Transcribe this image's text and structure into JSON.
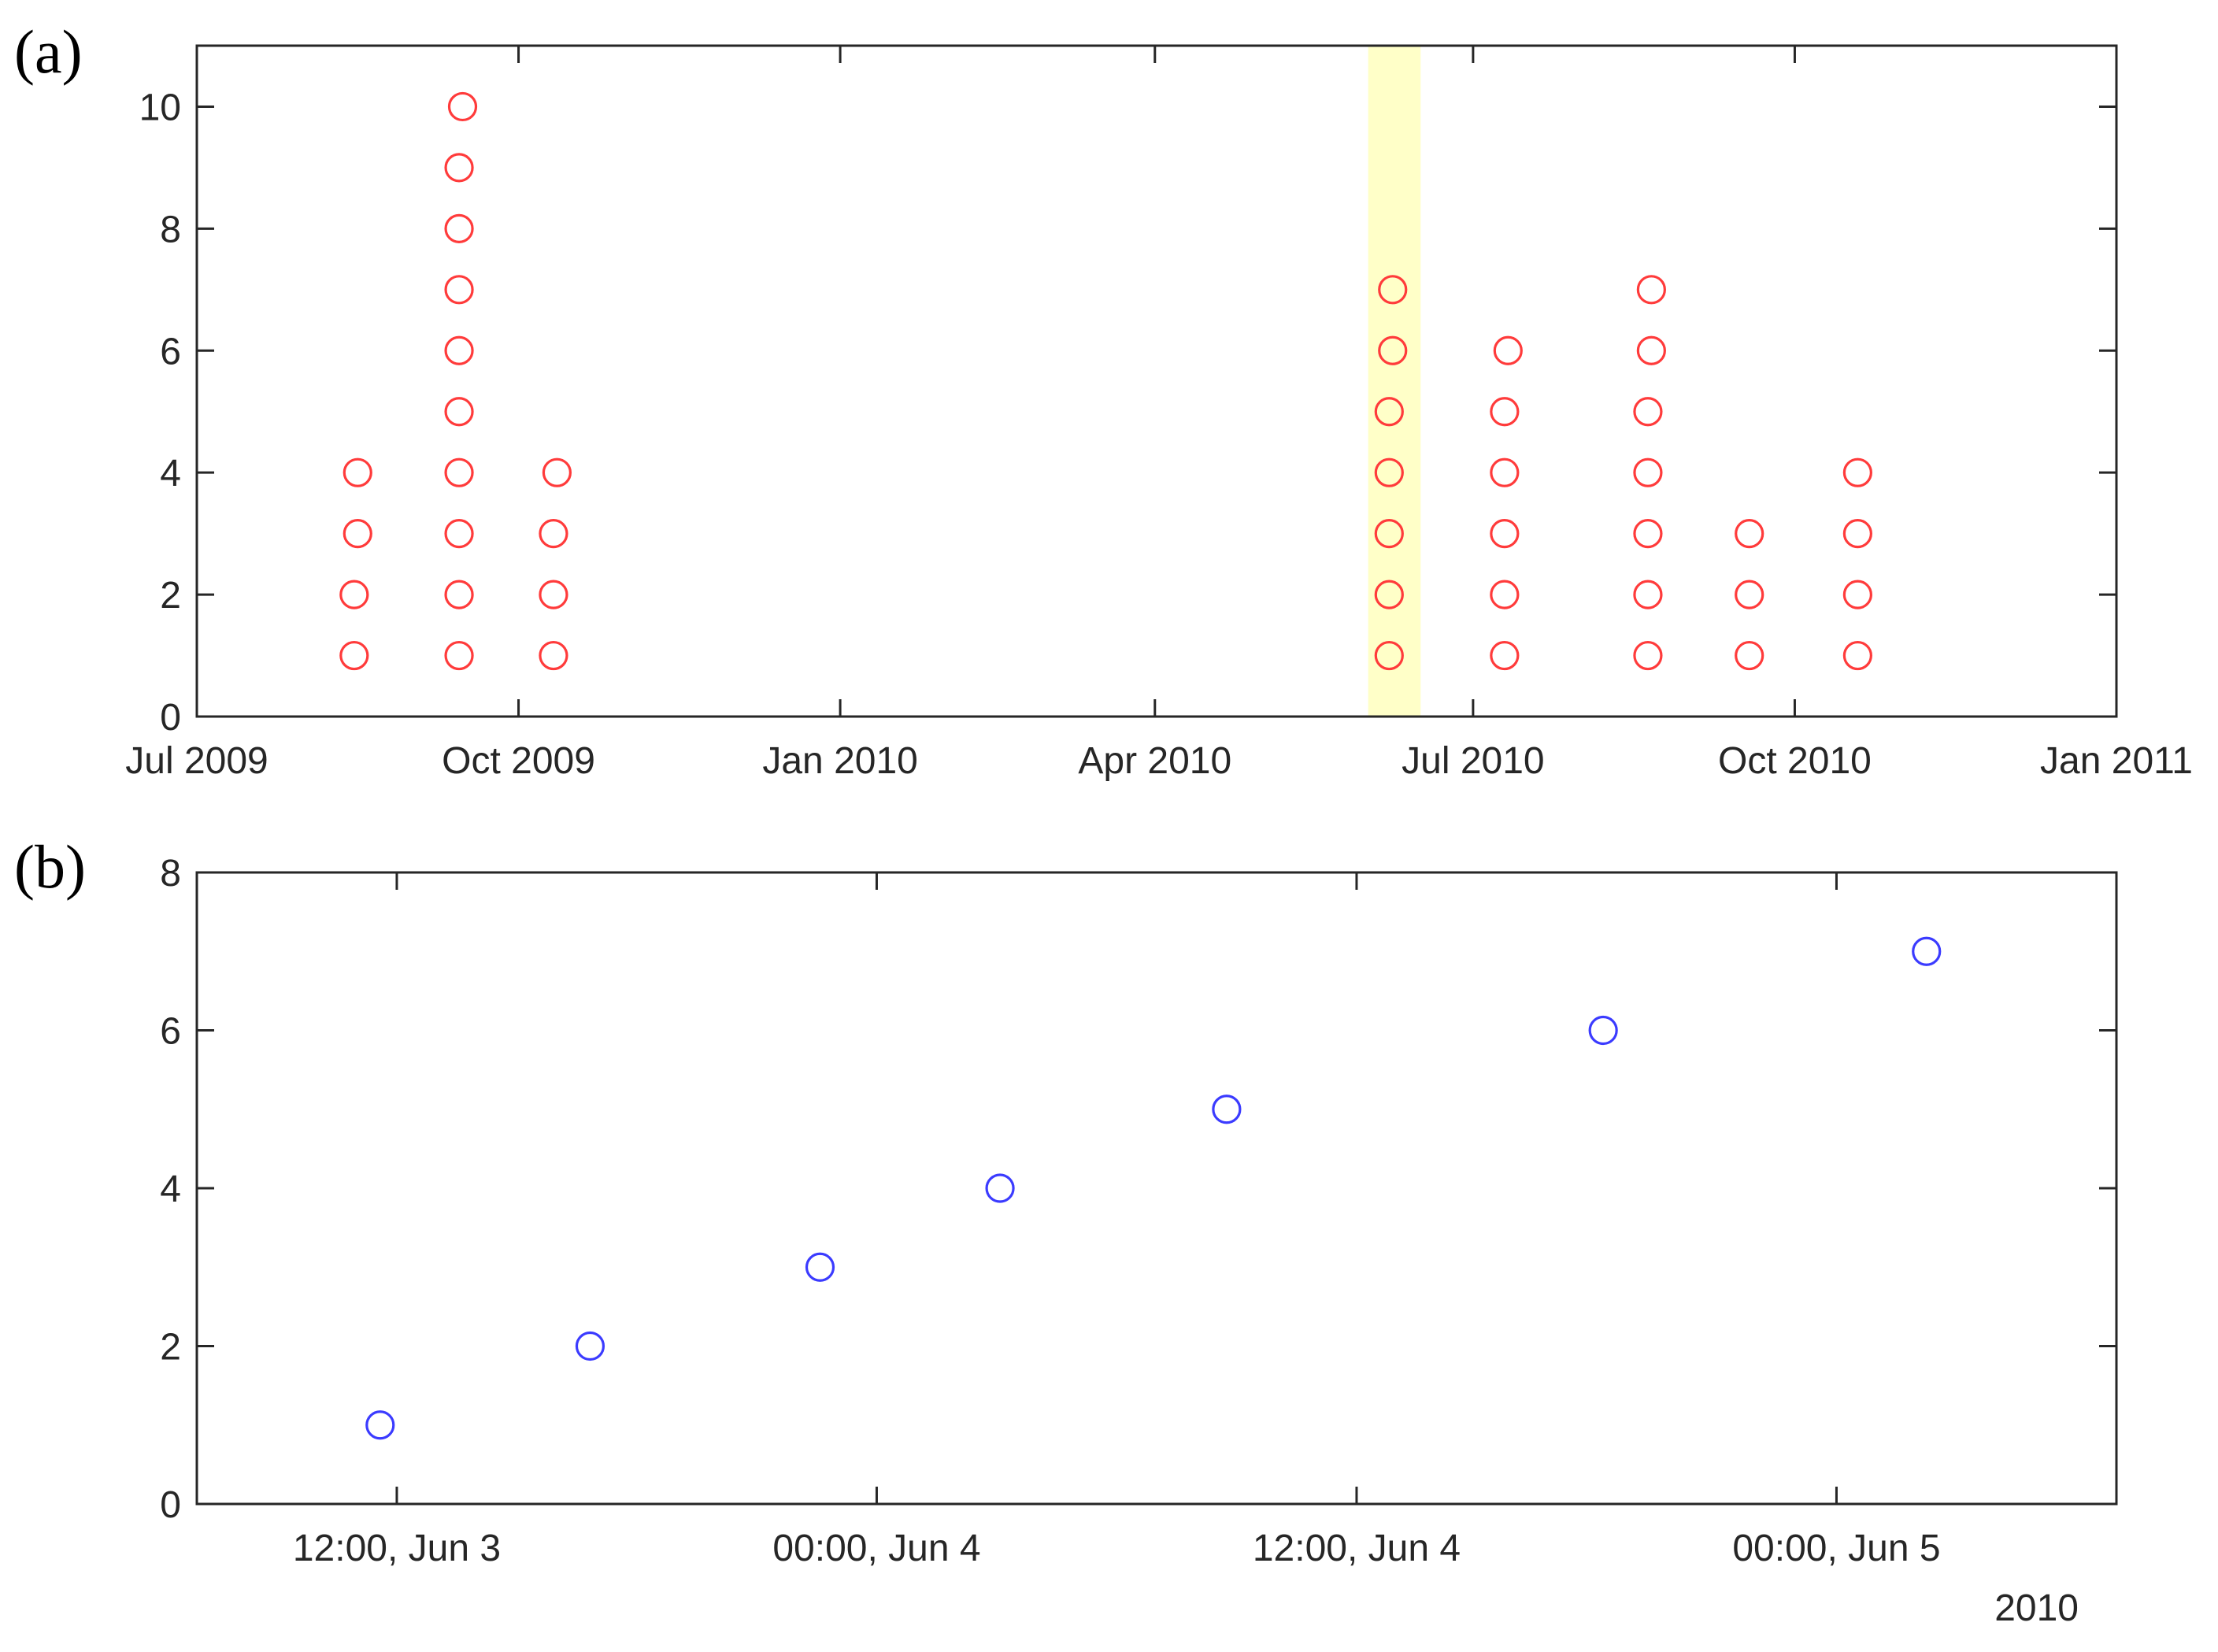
{
  "chart_data": [
    {
      "panel_label": "(a)",
      "type": "scatter",
      "marker": "open-circle",
      "marker_color": "#ff3b3b",
      "x_axis_type": "date",
      "xlim": [
        "2009-07-01",
        "2011-01-01"
      ],
      "ylim": [
        0,
        11
      ],
      "x_ticks": [
        {
          "value": "2009-07-01",
          "label": "Jul 2009"
        },
        {
          "value": "2009-10-01",
          "label": "Oct 2009"
        },
        {
          "value": "2010-01-01",
          "label": "Jan 2010"
        },
        {
          "value": "2010-04-01",
          "label": "Apr 2010"
        },
        {
          "value": "2010-07-01",
          "label": "Jul 2010"
        },
        {
          "value": "2010-10-01",
          "label": "Oct 2010"
        },
        {
          "value": "2011-01-01",
          "label": "Jan 2011"
        }
      ],
      "y_ticks": [
        0,
        2,
        4,
        6,
        8,
        10
      ],
      "highlight_band": {
        "x_start": "2010-06-01",
        "x_end": "2010-06-16",
        "color": "#ffffc8"
      },
      "grid": false,
      "points": [
        {
          "x": "2009-08-15",
          "y": 1
        },
        {
          "x": "2009-08-15",
          "y": 2
        },
        {
          "x": "2009-08-16",
          "y": 3
        },
        {
          "x": "2009-08-16",
          "y": 4
        },
        {
          "x": "2009-09-14",
          "y": 1
        },
        {
          "x": "2009-09-14",
          "y": 2
        },
        {
          "x": "2009-09-14",
          "y": 3
        },
        {
          "x": "2009-09-14",
          "y": 4
        },
        {
          "x": "2009-09-14",
          "y": 5
        },
        {
          "x": "2009-09-14",
          "y": 6
        },
        {
          "x": "2009-09-14",
          "y": 7
        },
        {
          "x": "2009-09-14",
          "y": 8
        },
        {
          "x": "2009-09-14",
          "y": 9
        },
        {
          "x": "2009-09-15",
          "y": 10
        },
        {
          "x": "2009-10-11",
          "y": 1
        },
        {
          "x": "2009-10-11",
          "y": 2
        },
        {
          "x": "2009-10-11",
          "y": 3
        },
        {
          "x": "2009-10-12",
          "y": 4
        },
        {
          "x": "2010-06-07",
          "y": 1
        },
        {
          "x": "2010-06-07",
          "y": 2
        },
        {
          "x": "2010-06-07",
          "y": 3
        },
        {
          "x": "2010-06-07",
          "y": 4
        },
        {
          "x": "2010-06-07",
          "y": 5
        },
        {
          "x": "2010-06-08",
          "y": 6
        },
        {
          "x": "2010-06-08",
          "y": 7
        },
        {
          "x": "2010-07-10",
          "y": 1
        },
        {
          "x": "2010-07-10",
          "y": 2
        },
        {
          "x": "2010-07-10",
          "y": 3
        },
        {
          "x": "2010-07-10",
          "y": 4
        },
        {
          "x": "2010-07-10",
          "y": 5
        },
        {
          "x": "2010-07-11",
          "y": 6
        },
        {
          "x": "2010-08-20",
          "y": 1
        },
        {
          "x": "2010-08-20",
          "y": 2
        },
        {
          "x": "2010-08-20",
          "y": 3
        },
        {
          "x": "2010-08-20",
          "y": 4
        },
        {
          "x": "2010-08-20",
          "y": 5
        },
        {
          "x": "2010-08-21",
          "y": 6
        },
        {
          "x": "2010-08-21",
          "y": 7
        },
        {
          "x": "2010-09-18",
          "y": 1
        },
        {
          "x": "2010-09-18",
          "y": 2
        },
        {
          "x": "2010-09-18",
          "y": 3
        },
        {
          "x": "2010-10-19",
          "y": 1
        },
        {
          "x": "2010-10-19",
          "y": 2
        },
        {
          "x": "2010-10-19",
          "y": 3
        },
        {
          "x": "2010-10-19",
          "y": 4
        }
      ]
    },
    {
      "panel_label": "(b)",
      "type": "scatter",
      "marker": "open-circle",
      "marker_color": "#3b3bff",
      "x_axis_type": "datetime",
      "xlim": [
        "2010-06-03T07:00",
        "2010-06-05T07:00"
      ],
      "ylim": [
        0,
        8
      ],
      "x_ticks": [
        {
          "value": "2010-06-03T12:00",
          "label": "12:00, Jun 3"
        },
        {
          "value": "2010-06-04T00:00",
          "label": "00:00, Jun 4"
        },
        {
          "value": "2010-06-04T12:00",
          "label": "12:00, Jun 4"
        },
        {
          "value": "2010-06-05T00:00",
          "label": "00:00, Jun 5"
        }
      ],
      "x_secondary_label": "2010",
      "y_ticks": [
        0,
        2,
        4,
        6,
        8
      ],
      "grid": false,
      "points": [
        {
          "x": "2010-06-03T11:35",
          "y": 1
        },
        {
          "x": "2010-06-03T16:50",
          "y": 2
        },
        {
          "x": "2010-06-03T22:35",
          "y": 3
        },
        {
          "x": "2010-06-04T03:05",
          "y": 4
        },
        {
          "x": "2010-06-04T08:45",
          "y": 5
        },
        {
          "x": "2010-06-04T18:10",
          "y": 6
        },
        {
          "x": "2010-06-05T02:15",
          "y": 7
        }
      ]
    }
  ]
}
